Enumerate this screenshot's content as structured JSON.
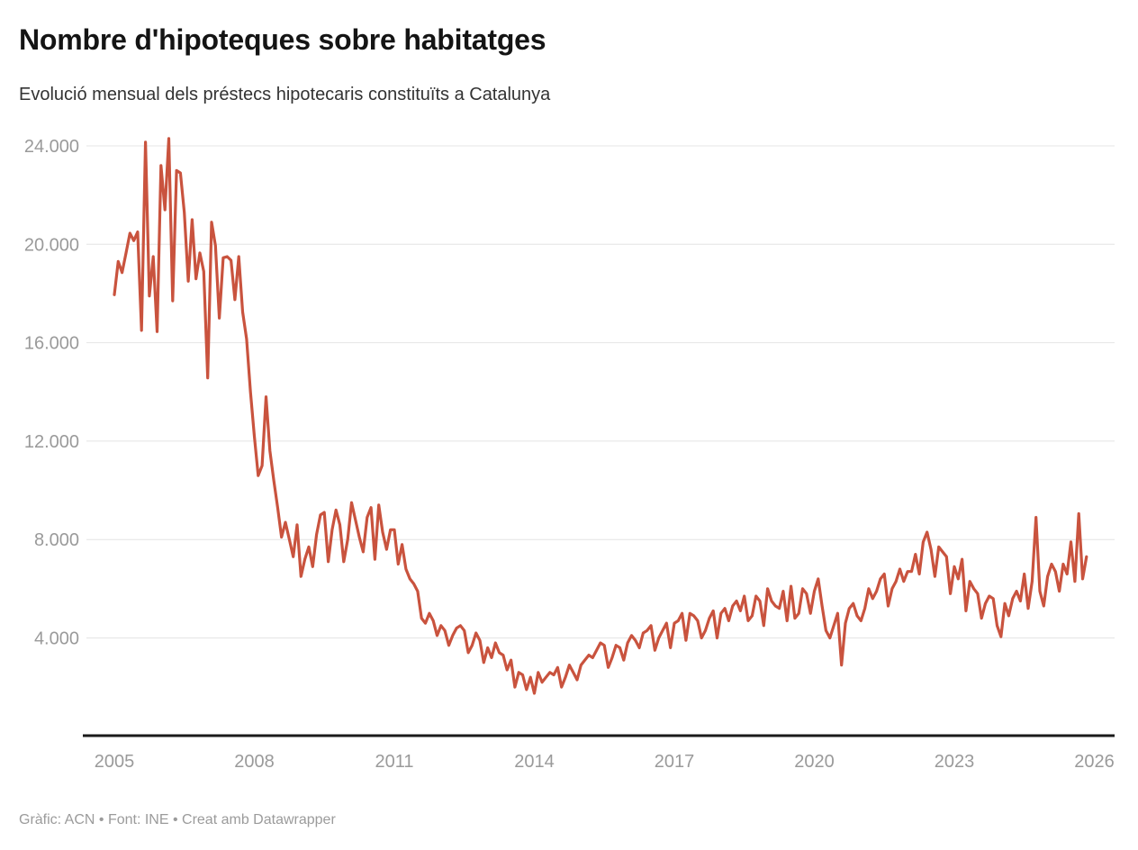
{
  "header": {
    "title": "Nombre d'hipoteques sobre habitatges",
    "subtitle": "Evolució mensual dels préstecs hipotecaris constituïts a Catalunya"
  },
  "footer": {
    "text": "Gràfic: ACN • Font: INE • Creat amb Datawrapper"
  },
  "chart_data": {
    "type": "line",
    "title": "Nombre d'hipoteques sobre habitatges",
    "subtitle": "Evolució mensual dels préstecs hipotecaris constituïts a Catalunya",
    "region": "Catalunya",
    "x_unit": "month",
    "x_start": "2005-01",
    "x_end": "2025-11",
    "x_tick_labels": [
      "2005",
      "2008",
      "2011",
      "2014",
      "2017",
      "2020",
      "2023",
      "2026"
    ],
    "x_tick_years": [
      2005,
      2008,
      2011,
      2014,
      2017,
      2020,
      2023,
      2026
    ],
    "y_ticks": [
      24000,
      20000,
      16000,
      12000,
      8000,
      4000
    ],
    "y_tick_labels": [
      "24.000",
      "20.000",
      "16.000",
      "12.000",
      "8.000",
      "4.000"
    ],
    "ylim": [
      1500,
      24500
    ],
    "grid": "horizontal",
    "legend": "none",
    "line_color": "#c9533e",
    "axis_color": "#1a1a1a",
    "grid_color": "#e4e4e4",
    "label_color": "#9a9a9a",
    "series": [
      {
        "name": "Hipoteques sobre habitatges",
        "values": [
          17950,
          19300,
          18850,
          19650,
          20450,
          20150,
          20500,
          16500,
          24150,
          17900,
          19500,
          16450,
          23200,
          21400,
          24300,
          17700,
          23000,
          22900,
          21300,
          18500,
          21000,
          18600,
          19650,
          18900,
          14570,
          20900,
          19950,
          17000,
          19450,
          19500,
          19350,
          17750,
          19500,
          17250,
          16150,
          14000,
          12200,
          10600,
          11000,
          13800,
          11600,
          10400,
          9300,
          8100,
          8700,
          8000,
          7300,
          8600,
          6500,
          7200,
          7700,
          6900,
          8200,
          9000,
          9100,
          7100,
          8400,
          9200,
          8600,
          7100,
          8000,
          9500,
          8800,
          8100,
          7500,
          8900,
          9300,
          7200,
          9400,
          8300,
          7600,
          8400,
          8400,
          7000,
          7800,
          6800,
          6400,
          6200,
          5900,
          4800,
          4600,
          5000,
          4700,
          4100,
          4500,
          4300,
          3700,
          4100,
          4400,
          4500,
          4300,
          3400,
          3700,
          4200,
          3900,
          3000,
          3600,
          3200,
          3800,
          3400,
          3300,
          2700,
          3100,
          2000,
          2600,
          2500,
          1900,
          2400,
          1750,
          2600,
          2200,
          2400,
          2600,
          2500,
          2800,
          2000,
          2400,
          2900,
          2600,
          2300,
          2900,
          3100,
          3300,
          3200,
          3500,
          3800,
          3700,
          2800,
          3200,
          3700,
          3600,
          3100,
          3800,
          4100,
          3900,
          3600,
          4200,
          4300,
          4500,
          3500,
          4000,
          4300,
          4600,
          3600,
          4600,
          4700,
          5000,
          3900,
          5000,
          4900,
          4700,
          4000,
          4300,
          4800,
          5100,
          4000,
          5000,
          5200,
          4700,
          5300,
          5500,
          5100,
          5700,
          4700,
          4900,
          5700,
          5500,
          4500,
          6000,
          5500,
          5300,
          5200,
          5900,
          4700,
          6100,
          4800,
          5000,
          6000,
          5800,
          5000,
          5900,
          6400,
          5300,
          4300,
          4000,
          4500,
          5000,
          2900,
          4600,
          5200,
          5400,
          4900,
          4700,
          5200,
          6000,
          5600,
          5900,
          6400,
          6600,
          5300,
          6000,
          6300,
          6800,
          6300,
          6700,
          6700,
          7400,
          6600,
          7900,
          8300,
          7600,
          6500,
          7700,
          7500,
          7300,
          5800,
          6900,
          6400,
          7200,
          5100,
          6300,
          6000,
          5800,
          4800,
          5400,
          5700,
          5600,
          4500,
          4050,
          5400,
          4900,
          5600,
          5900,
          5500,
          6600,
          5200,
          6300,
          8900,
          5900,
          5300,
          6500,
          7000,
          6700,
          5900,
          7000,
          6600,
          7900,
          6300,
          9050,
          6400,
          7300
        ]
      }
    ]
  }
}
